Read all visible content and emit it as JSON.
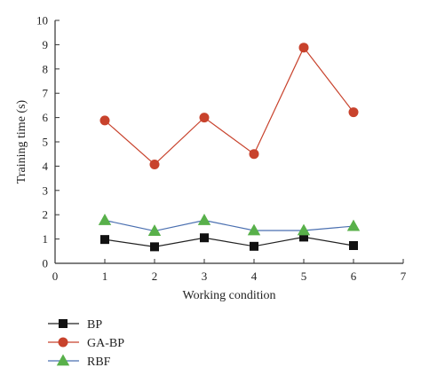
{
  "chart_data": {
    "type": "line",
    "title": "",
    "xlabel": "Working condition",
    "ylabel": "Training time (s)",
    "xlim": [
      0,
      7
    ],
    "ylim": [
      0,
      10
    ],
    "x_ticks": [
      "0",
      "1",
      "2",
      "3",
      "4",
      "5",
      "6",
      "7"
    ],
    "y_ticks": [
      "0",
      "1",
      "2",
      "3",
      "4",
      "5",
      "6",
      "7",
      "8",
      "9",
      "10"
    ],
    "grid": false,
    "legend_position": "bottom-left",
    "x": [
      1,
      2,
      3,
      4,
      5,
      6
    ],
    "series": [
      {
        "name": "BP",
        "values": [
          0.98,
          0.68,
          1.05,
          0.7,
          1.08,
          0.73
        ],
        "color": "#222222",
        "marker": "square",
        "marker_color": "#111111"
      },
      {
        "name": "GA-BP",
        "values": [
          5.88,
          4.07,
          6.0,
          4.5,
          8.88,
          6.22
        ],
        "color": "#c8422c",
        "marker": "circle",
        "marker_color": "#c8422c"
      },
      {
        "name": "RBF",
        "values": [
          1.77,
          1.33,
          1.77,
          1.35,
          1.35,
          1.53
        ],
        "color": "#4a6fb0",
        "marker": "triangle",
        "marker_color": "#58b04a"
      }
    ]
  }
}
